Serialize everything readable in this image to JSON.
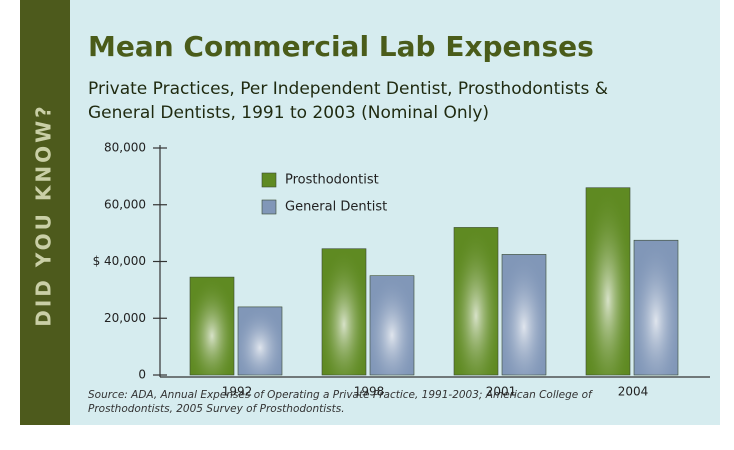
{
  "sidebar": "DID YOU KNOW?",
  "chart_data": {
    "type": "bar",
    "title": "Mean Commercial Lab Expenses",
    "subtitle": [
      "Private Practices, Per Independent Dentist, Prosthodontists &",
      "General Dentists, 1991 to 2003 (Nominal Only)"
    ],
    "source": [
      "Source: ADA, Annual Expenses of Operating a Private Practice, 1991-2003; American College of",
      "Prosthodontists, 2005 Survey of Prosthodontists."
    ],
    "categories": [
      "1992",
      "1998",
      "2001",
      "2004"
    ],
    "series": [
      {
        "name": "Prosthodontist",
        "color": "#5f8a22",
        "values": [
          34500,
          44500,
          52000,
          66000
        ]
      },
      {
        "name": "General Dentist",
        "color": "#8197b8",
        "values": [
          24000,
          35000,
          42500,
          47500
        ]
      }
    ],
    "ylim": [
      0,
      80000
    ],
    "yticks": [
      0,
      {
        "value": 20000,
        "label": "20,000"
      },
      {
        "value": 40000,
        "label": "$ 40,000"
      },
      {
        "value": 60000,
        "label": "60,000"
      },
      {
        "value": 80000,
        "label": "80,000"
      }
    ],
    "legend": "upper left"
  }
}
